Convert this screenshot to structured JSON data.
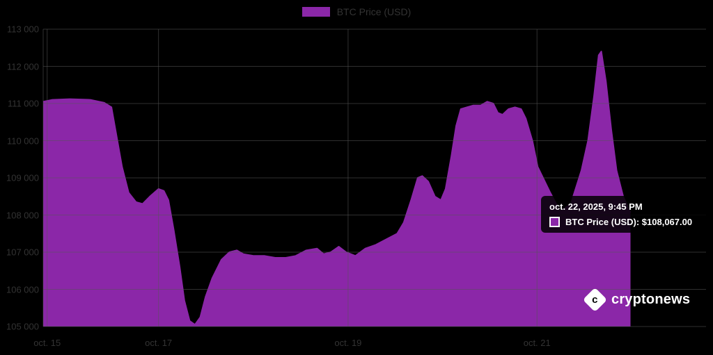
{
  "page": {
    "background": "#000000"
  },
  "legend": {
    "label": "BTC Price (USD)",
    "swatch_color": "#8b27a8"
  },
  "tooltip": {
    "title": "oct. 22, 2025, 9:45 PM",
    "series_label": "BTC Price (USD): $108,067.00",
    "swatch_color": "#8b27a8"
  },
  "watermark": {
    "text": "cryptonews",
    "icon": "cryptonews-diamond-logo",
    "icon_letter": "c"
  },
  "chart_data": {
    "type": "area",
    "title": "",
    "legend_position": "top",
    "grid": true,
    "grid_color": "#555555",
    "ylim": [
      105000,
      113000
    ],
    "ylabel": "",
    "xlabel": "",
    "y_ticks": [
      {
        "value": 113000,
        "label": "113 000"
      },
      {
        "value": 112000,
        "label": "112 000"
      },
      {
        "value": 111000,
        "label": "111 000"
      },
      {
        "value": 110000,
        "label": "110 000"
      },
      {
        "value": 109000,
        "label": "109 000"
      },
      {
        "value": 108000,
        "label": "108 000"
      },
      {
        "value": 107000,
        "label": "107 000"
      },
      {
        "value": 106000,
        "label": "106 000"
      },
      {
        "value": 105000,
        "label": "105 000"
      }
    ],
    "x_ticks": [
      {
        "pos": 0.006,
        "label": "oct. 15"
      },
      {
        "pos": 0.174,
        "label": "oct. 17"
      },
      {
        "pos": 0.46,
        "label": "oct. 19"
      },
      {
        "pos": 0.745,
        "label": "oct. 21"
      }
    ],
    "series": [
      {
        "name": "BTC Price (USD)",
        "color": "#8b27a8",
        "last_point": {
          "time": "oct. 22, 2025, 9:45 PM",
          "value": 108067.0
        },
        "points": [
          [
            0.0,
            111050
          ],
          [
            0.014,
            111100
          ],
          [
            0.04,
            111120
          ],
          [
            0.071,
            111100
          ],
          [
            0.092,
            111020
          ],
          [
            0.103,
            110900
          ],
          [
            0.108,
            110400
          ],
          [
            0.119,
            109300
          ],
          [
            0.129,
            108600
          ],
          [
            0.14,
            108350
          ],
          [
            0.15,
            108300
          ],
          [
            0.161,
            108500
          ],
          [
            0.174,
            108700
          ],
          [
            0.182,
            108650
          ],
          [
            0.189,
            108400
          ],
          [
            0.197,
            107600
          ],
          [
            0.206,
            106600
          ],
          [
            0.213,
            105700
          ],
          [
            0.221,
            105150
          ],
          [
            0.229,
            105050
          ],
          [
            0.237,
            105250
          ],
          [
            0.245,
            105800
          ],
          [
            0.255,
            106300
          ],
          [
            0.269,
            106800
          ],
          [
            0.281,
            107000
          ],
          [
            0.292,
            107050
          ],
          [
            0.302,
            106950
          ],
          [
            0.318,
            106900
          ],
          [
            0.334,
            106900
          ],
          [
            0.35,
            106850
          ],
          [
            0.366,
            106850
          ],
          [
            0.381,
            106900
          ],
          [
            0.397,
            107050
          ],
          [
            0.413,
            107100
          ],
          [
            0.423,
            106950
          ],
          [
            0.434,
            107000
          ],
          [
            0.446,
            107150
          ],
          [
            0.457,
            107000
          ],
          [
            0.471,
            106900
          ],
          [
            0.486,
            107100
          ],
          [
            0.502,
            107200
          ],
          [
            0.518,
            107350
          ],
          [
            0.534,
            107500
          ],
          [
            0.544,
            107800
          ],
          [
            0.555,
            108400
          ],
          [
            0.565,
            109000
          ],
          [
            0.572,
            109050
          ],
          [
            0.581,
            108900
          ],
          [
            0.591,
            108500
          ],
          [
            0.6,
            108400
          ],
          [
            0.607,
            108700
          ],
          [
            0.616,
            109600
          ],
          [
            0.623,
            110400
          ],
          [
            0.63,
            110850
          ],
          [
            0.639,
            110900
          ],
          [
            0.649,
            110950
          ],
          [
            0.66,
            110950
          ],
          [
            0.67,
            111050
          ],
          [
            0.679,
            111000
          ],
          [
            0.686,
            110750
          ],
          [
            0.693,
            110700
          ],
          [
            0.702,
            110850
          ],
          [
            0.712,
            110900
          ],
          [
            0.721,
            110850
          ],
          [
            0.728,
            110600
          ],
          [
            0.738,
            110000
          ],
          [
            0.746,
            109300
          ],
          [
            0.765,
            108600
          ],
          [
            0.78,
            108100
          ],
          [
            0.796,
            108300
          ],
          [
            0.812,
            109200
          ],
          [
            0.822,
            110000
          ],
          [
            0.831,
            111200
          ],
          [
            0.838,
            112300
          ],
          [
            0.842,
            112400
          ],
          [
            0.849,
            111600
          ],
          [
            0.857,
            110300
          ],
          [
            0.865,
            109200
          ],
          [
            0.875,
            108500
          ],
          [
            0.886,
            108067
          ]
        ]
      }
    ]
  }
}
